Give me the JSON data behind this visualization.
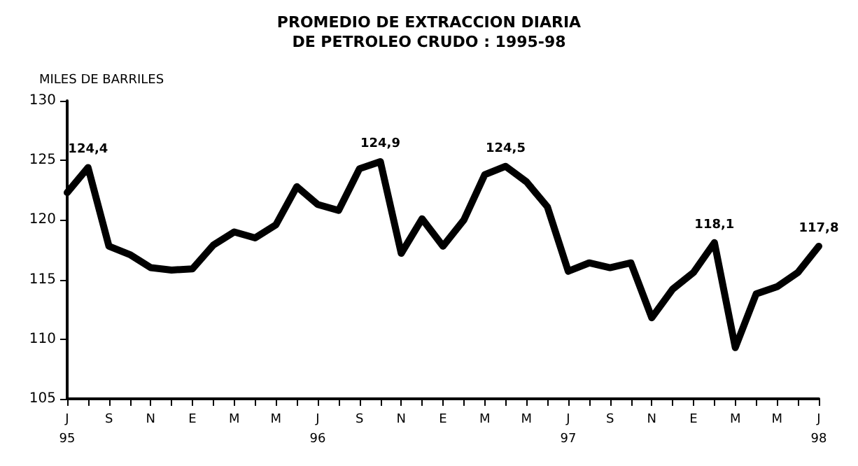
{
  "chart_data": {
    "type": "line",
    "title": "PROMEDIO DE EXTRACCION DIARIA\nDE PETROLEO CRUDO : 1995-98",
    "ylabel": "MILES DE BARRILES",
    "categories": [
      "J\n95",
      null,
      "S",
      null,
      "N",
      null,
      "E",
      null,
      "M",
      null,
      "M",
      null,
      "J\n96",
      null,
      "S",
      null,
      "N",
      null,
      "E",
      null,
      "M",
      null,
      "M",
      null,
      "J\n97",
      null,
      "S",
      null,
      "N",
      null,
      "E",
      null,
      "M",
      null,
      "M",
      null,
      "J\n98"
    ],
    "series": [
      {
        "color": "#000000",
        "values": [
          122.3,
          124.4,
          117.8,
          117.1,
          116.0,
          115.8,
          115.9,
          117.9,
          119.0,
          118.5,
          119.6,
          122.8,
          121.3,
          120.8,
          124.3,
          124.9,
          117.2,
          120.1,
          117.8,
          120.0,
          123.8,
          124.5,
          123.2,
          121.1,
          115.7,
          116.4,
          116.0,
          116.4,
          111.8,
          114.2,
          115.6,
          118.1,
          109.3,
          113.8,
          114.4,
          115.6,
          117.8
        ],
        "value_labels": [
          null,
          "124,4",
          null,
          null,
          null,
          null,
          null,
          null,
          null,
          null,
          null,
          null,
          null,
          null,
          null,
          "124,9",
          null,
          null,
          null,
          null,
          null,
          "124,5",
          null,
          null,
          null,
          null,
          null,
          null,
          null,
          null,
          null,
          "118,1",
          null,
          null,
          null,
          null,
          "117,8"
        ]
      }
    ],
    "ylim": [
      105,
      130
    ],
    "yticks": [
      105,
      110,
      115,
      120,
      125,
      130
    ],
    "grid": false,
    "marker": "none",
    "line_style": "solid"
  }
}
